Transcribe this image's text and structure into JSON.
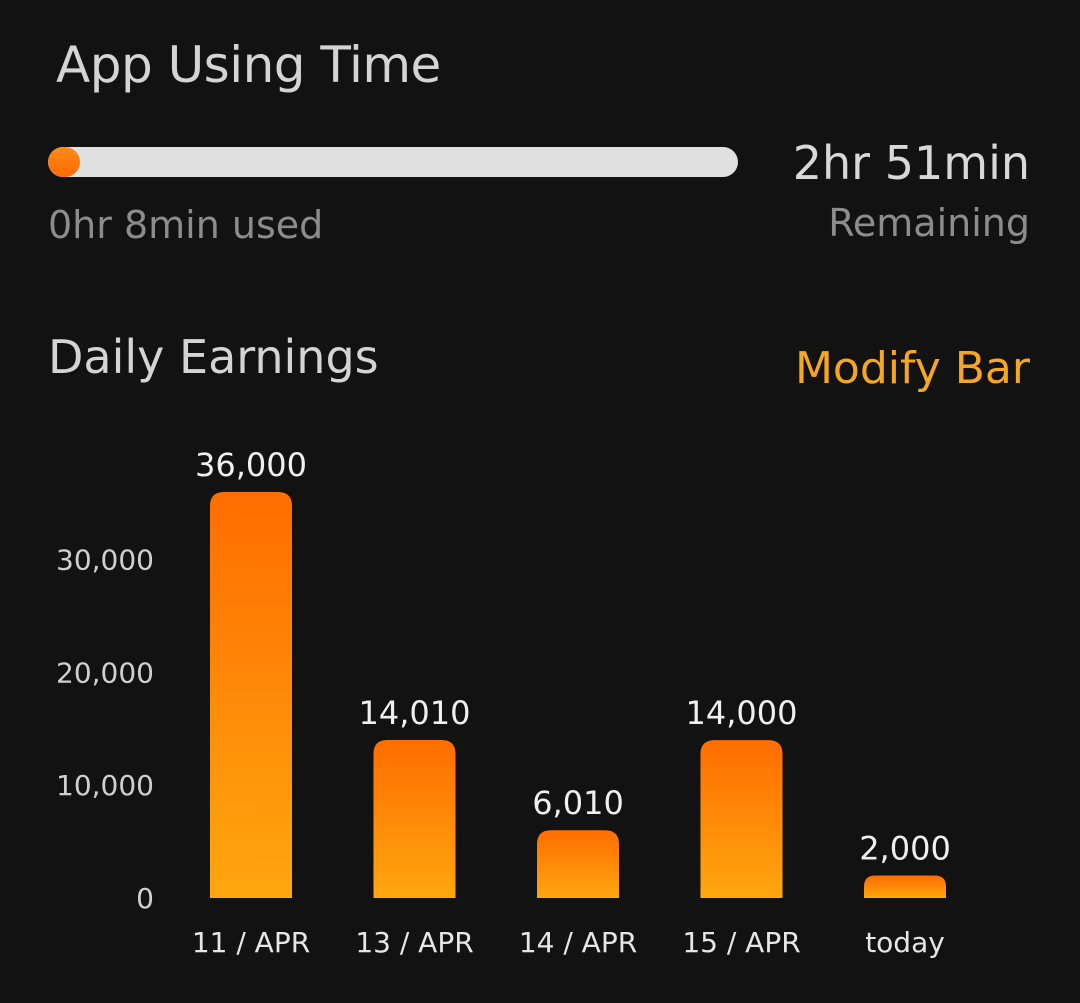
{
  "usage": {
    "title": "App Using Time",
    "used_label": "0hr 8min used",
    "remaining_value": "2hr 51min",
    "remaining_label": "Remaining",
    "progress_fraction": 0.045,
    "colors": {
      "track": "#e0e0e0",
      "fill": "#ff6a00"
    }
  },
  "earnings": {
    "title": "Daily Earnings",
    "action_label": "Modify Bar",
    "action_color": "#f5a623"
  },
  "chart_data": {
    "type": "bar",
    "categories": [
      "11 / APR",
      "13 / APR",
      "14 / APR",
      "15 / APR",
      "today"
    ],
    "values": [
      36000,
      14010,
      6010,
      14000,
      2000
    ],
    "value_labels": [
      "36,000",
      "14,010",
      "6,010",
      "14,000",
      "2,000"
    ],
    "yticks": [
      0,
      10000,
      20000,
      30000
    ],
    "ytick_labels": [
      "0",
      "10,000",
      "20,000",
      "30,000"
    ],
    "ylim": [
      0,
      36000
    ],
    "grid": false,
    "legend": "none",
    "colors": {
      "bar_top": "#ff6d00",
      "bar_bottom": "#ffa70f"
    }
  }
}
